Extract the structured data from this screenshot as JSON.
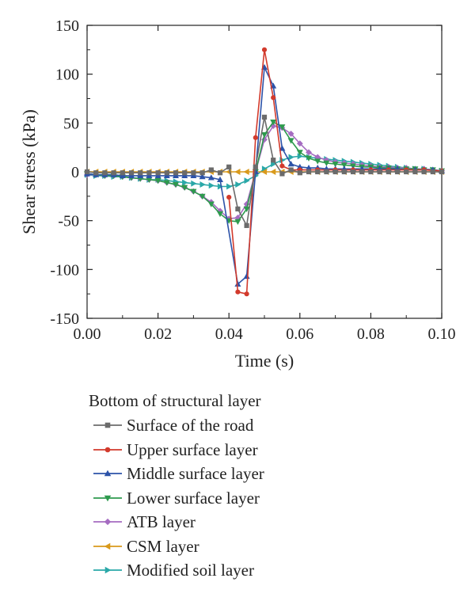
{
  "chart_data": {
    "type": "line",
    "xlabel": "Time (s)",
    "ylabel": "Shear stress (kPa)",
    "xlim": [
      0,
      0.1
    ],
    "ylim": [
      -150,
      150
    ],
    "xticks": [
      "0.00",
      "0.02",
      "0.04",
      "0.06",
      "0.08",
      "0.10"
    ],
    "yticks": [
      "150",
      "100",
      "50",
      "0",
      "-50",
      "-100",
      "-150"
    ],
    "grid": false,
    "legend_title": "Bottom of structural layer",
    "legend_position": "bottom",
    "series": [
      {
        "name": "Surface of the road",
        "color": "#6b6b6b",
        "marker": "square",
        "x": [
          0,
          0.0025,
          0.005,
          0.0075,
          0.01,
          0.0125,
          0.015,
          0.0175,
          0.02,
          0.0225,
          0.025,
          0.0275,
          0.03,
          0.0325,
          0.035,
          0.0375,
          0.04,
          0.0425,
          0.045,
          0.0475,
          0.05,
          0.0525,
          0.055,
          0.0575,
          0.06,
          0.0625,
          0.065,
          0.0675,
          0.07,
          0.0725,
          0.075,
          0.0775,
          0.08,
          0.0825,
          0.085,
          0.0875,
          0.09,
          0.0925,
          0.095,
          0.0975,
          0.1
        ],
        "y": [
          0,
          -1,
          -1,
          -1,
          -1,
          -1,
          -1,
          -1,
          -1,
          -1,
          -1,
          -1,
          -1,
          -1,
          2,
          -1,
          5,
          -38,
          -55,
          5,
          56,
          12,
          -2,
          2,
          -1,
          0,
          0,
          0,
          0,
          0,
          0,
          0,
          0,
          0,
          0,
          0,
          0,
          0,
          0,
          0,
          0
        ]
      },
      {
        "name": "Upper surface layer",
        "color": "#d23a2c",
        "marker": "circle",
        "x": [
          0.04,
          0.0425,
          0.045,
          0.0475,
          0.05,
          0.0525,
          0.055,
          0.0575,
          0.06,
          0.065,
          0.07,
          0.075,
          0.08,
          0.085,
          0.09,
          0.095,
          0.1
        ],
        "y": [
          -26,
          -123,
          -125,
          35,
          125,
          76,
          6,
          2,
          2,
          2,
          2,
          2,
          2,
          2,
          2,
          2,
          1
        ]
      },
      {
        "name": "Middle surface layer",
        "color": "#2c52a8",
        "marker": "triangle-up",
        "x": [
          0,
          0.0025,
          0.005,
          0.0075,
          0.01,
          0.0125,
          0.015,
          0.0175,
          0.02,
          0.0225,
          0.025,
          0.0275,
          0.03,
          0.0325,
          0.035,
          0.0375,
          0.0425,
          0.045,
          0.0475,
          0.05,
          0.0525,
          0.055,
          0.0575,
          0.06,
          0.0625,
          0.065,
          0.0675,
          0.07,
          0.0725,
          0.075,
          0.0775,
          0.08,
          0.0825,
          0.085,
          0.0875,
          0.09,
          0.0925,
          0.095,
          0.0975,
          0.1
        ],
        "y": [
          -2,
          -3,
          -3,
          -3,
          -4,
          -4,
          -4,
          -4,
          -4,
          -4,
          -4,
          -4,
          -4,
          -5,
          -6,
          -8,
          -115,
          -107,
          0,
          107,
          88,
          24,
          8,
          5,
          4,
          4,
          3,
          3,
          3,
          3,
          3,
          3,
          3,
          3,
          3,
          2,
          2,
          2,
          2,
          1
        ]
      },
      {
        "name": "Lower surface layer",
        "color": "#2e9a4e",
        "marker": "triangle-down",
        "x": [
          0,
          0.0025,
          0.005,
          0.0075,
          0.01,
          0.0125,
          0.015,
          0.0175,
          0.02,
          0.0225,
          0.025,
          0.0275,
          0.03,
          0.0325,
          0.035,
          0.0375,
          0.04,
          0.0425,
          0.045,
          0.0475,
          0.05,
          0.0525,
          0.055,
          0.0575,
          0.06,
          0.0625,
          0.065,
          0.0675,
          0.07,
          0.0725,
          0.075,
          0.0775,
          0.08,
          0.0825,
          0.085,
          0.0875,
          0.09,
          0.0925,
          0.095,
          0.0975,
          0.1
        ],
        "y": [
          -2,
          -3,
          -4,
          -4,
          -5,
          -6,
          -7,
          -8,
          -9,
          -11,
          -13,
          -16,
          -20,
          -25,
          -33,
          -43,
          -50,
          -51,
          -38,
          0,
          38,
          51,
          46,
          32,
          20,
          14,
          11,
          9,
          8,
          7,
          6,
          5,
          5,
          4,
          4,
          3,
          3,
          3,
          2,
          2,
          1
        ]
      },
      {
        "name": "ATB layer",
        "color": "#a56cc1",
        "marker": "diamond",
        "x": [
          0,
          0.0025,
          0.005,
          0.0075,
          0.01,
          0.0125,
          0.015,
          0.0175,
          0.02,
          0.0225,
          0.025,
          0.0275,
          0.03,
          0.0325,
          0.035,
          0.0375,
          0.04,
          0.0425,
          0.045,
          0.0475,
          0.05,
          0.0525,
          0.055,
          0.0575,
          0.06,
          0.0625,
          0.065,
          0.0675,
          0.07,
          0.0725,
          0.075,
          0.0775,
          0.08,
          0.0825,
          0.085,
          0.0875,
          0.09,
          0.0925,
          0.095,
          0.0975,
          0.1
        ],
        "y": [
          -3,
          -3,
          -4,
          -4,
          -5,
          -6,
          -7,
          -8,
          -9,
          -11,
          -13,
          -16,
          -20,
          -25,
          -31,
          -40,
          -48,
          -47,
          -33,
          0,
          33,
          47,
          45,
          39,
          29,
          20,
          15,
          12,
          10,
          9,
          8,
          7,
          6,
          5,
          5,
          4,
          4,
          3,
          3,
          2,
          1
        ]
      },
      {
        "name": "CSM layer",
        "color": "#d99a1c",
        "marker": "triangle-left",
        "x": [
          0,
          0.0025,
          0.005,
          0.0075,
          0.01,
          0.0125,
          0.015,
          0.0175,
          0.02,
          0.0225,
          0.025,
          0.0275,
          0.03,
          0.0325,
          0.035,
          0.0375,
          0.04,
          0.0425,
          0.045,
          0.0475,
          0.05,
          0.0525,
          0.055,
          0.0575,
          0.06,
          0.0625,
          0.065,
          0.0675,
          0.07,
          0.0725,
          0.075,
          0.0775,
          0.08,
          0.0825,
          0.085,
          0.0875,
          0.09,
          0.0925,
          0.095,
          0.0975,
          0.1
        ],
        "y": [
          0,
          0,
          0,
          0,
          0,
          0,
          0,
          0,
          0,
          0,
          0,
          0,
          0,
          0,
          0,
          0,
          0,
          0,
          0,
          0,
          0,
          0,
          0,
          0,
          0,
          0,
          0,
          0,
          0,
          0,
          0,
          0,
          0,
          0,
          0,
          0,
          0,
          0,
          0,
          0,
          0
        ]
      },
      {
        "name": "Modified soil layer",
        "color": "#2aa8a8",
        "marker": "triangle-right",
        "x": [
          0,
          0.0025,
          0.005,
          0.0075,
          0.01,
          0.0125,
          0.015,
          0.0175,
          0.02,
          0.0225,
          0.025,
          0.0275,
          0.03,
          0.0325,
          0.035,
          0.0375,
          0.04,
          0.0425,
          0.045,
          0.0475,
          0.05,
          0.0525,
          0.055,
          0.0575,
          0.06,
          0.0625,
          0.065,
          0.0675,
          0.07,
          0.0725,
          0.075,
          0.0775,
          0.08,
          0.0825,
          0.085,
          0.0875,
          0.09,
          0.0925,
          0.095,
          0.0975,
          0.1
        ],
        "y": [
          -3,
          -4,
          -4,
          -5,
          -5,
          -6,
          -7,
          -8,
          -8,
          -9,
          -10,
          -11,
          -12,
          -13,
          -14,
          -15,
          -15,
          -13,
          -9,
          -4,
          3,
          8,
          12,
          15,
          16,
          15,
          14,
          13,
          12,
          11,
          10,
          9,
          8,
          7,
          6,
          5,
          4,
          3,
          3,
          2,
          1
        ]
      }
    ]
  }
}
